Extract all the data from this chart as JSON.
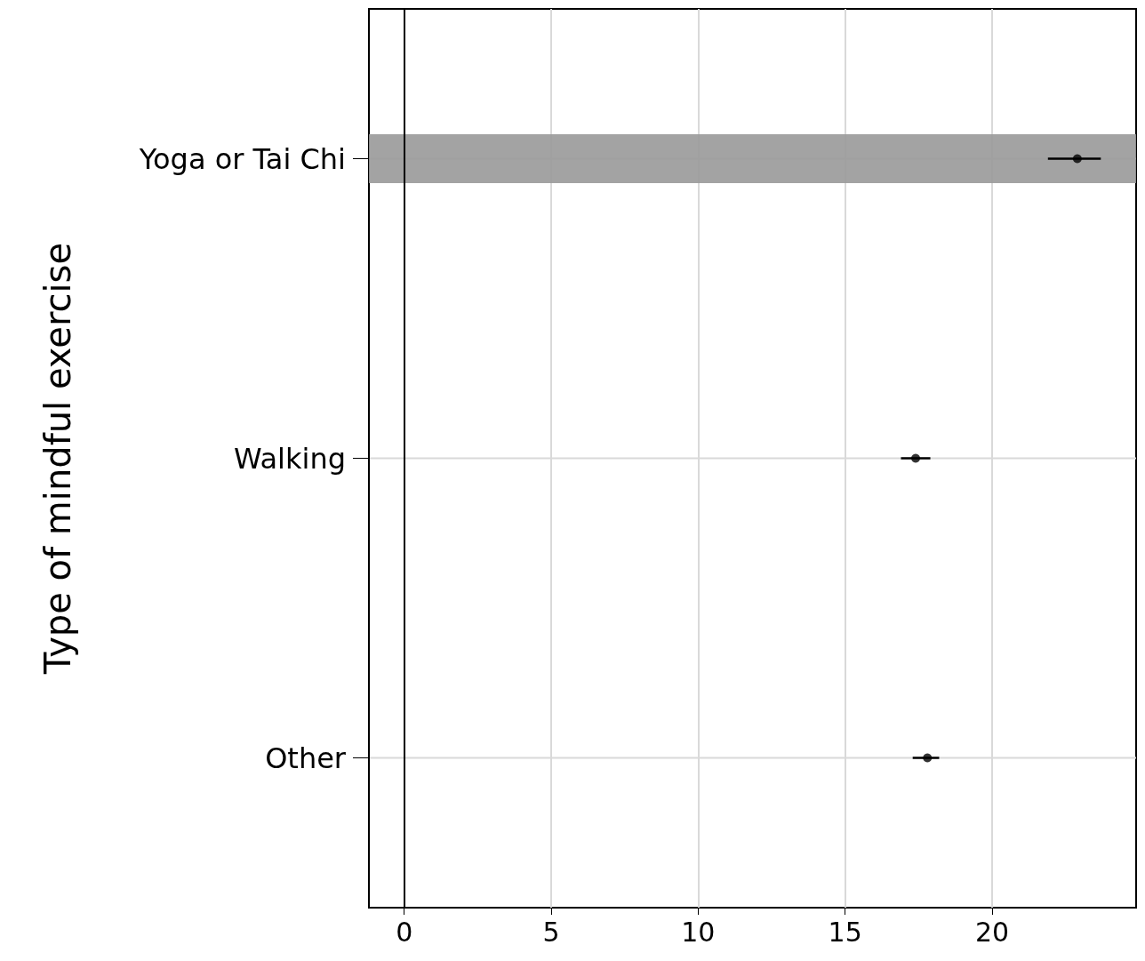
{
  "chart_data": {
    "type": "scatter",
    "orientation": "horizontal",
    "ylabel": "Type of mindful exercise",
    "categories": [
      "Yoga or Tai Chi",
      "Walking",
      "Other"
    ],
    "values": [
      22.9,
      17.4,
      17.8
    ],
    "errors": [
      [
        21.9,
        23.7
      ],
      [
        16.9,
        17.9
      ],
      [
        17.3,
        18.2
      ]
    ],
    "color": "#000000",
    "marker": "circle",
    "xlim": [
      -1.2,
      24.9
    ],
    "xticks": [
      0,
      5,
      10,
      15,
      20
    ],
    "grid": true,
    "ref_lines": [
      {
        "axis": "x",
        "value": 0,
        "color": "#000000",
        "line_style": "solid"
      }
    ],
    "bands": [
      {
        "axis": "y",
        "from": "Yoga or Tai Chi",
        "to": "Yoga or Tai Chi",
        "color": "#999999"
      }
    ]
  }
}
